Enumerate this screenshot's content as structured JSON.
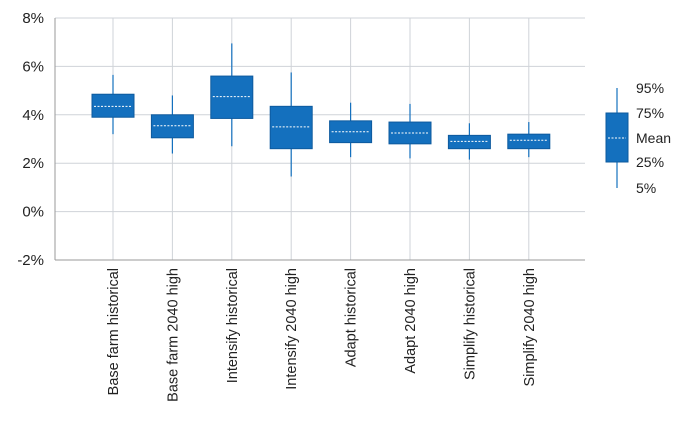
{
  "chart_data": {
    "type": "boxplot",
    "title": "",
    "xlabel": "",
    "ylabel": "",
    "ylim": [
      -2,
      8
    ],
    "yticks": [
      -2,
      0,
      2,
      4,
      6,
      8
    ],
    "ytick_labels": [
      "-2%",
      "0%",
      "2%",
      "4%",
      "6%",
      "8%"
    ],
    "grid": true,
    "legend_position": "right",
    "categories": [
      "Base farm historical",
      "Base farm 2040 high",
      "Intensify historical",
      "Intensify 2040 high",
      "Adapt historical",
      "Adapt 2040 high",
      "Simplify historical",
      "Simplify 2040 high"
    ],
    "p5": [
      3.2,
      2.4,
      2.7,
      1.45,
      2.25,
      2.2,
      2.15,
      2.25
    ],
    "p25": [
      3.9,
      3.05,
      3.85,
      2.6,
      2.85,
      2.8,
      2.6,
      2.6
    ],
    "mean": [
      4.35,
      3.55,
      4.75,
      3.5,
      3.3,
      3.25,
      2.9,
      2.95
    ],
    "p75": [
      4.85,
      4.0,
      5.6,
      4.35,
      3.75,
      3.7,
      3.15,
      3.2
    ],
    "p95": [
      5.65,
      4.8,
      6.95,
      5.75,
      4.5,
      4.45,
      3.65,
      3.7
    ],
    "legend": {
      "items": [
        "95%",
        "75%",
        "Mean",
        "25%",
        "5%"
      ]
    },
    "colors": {
      "box_fill": "#1470be",
      "box_stroke": "#0d5a9e",
      "whisker": "#1470be",
      "mean_line": "#ffffff",
      "grid": "#cfd3d8",
      "axis": "#9a9a9a"
    }
  }
}
